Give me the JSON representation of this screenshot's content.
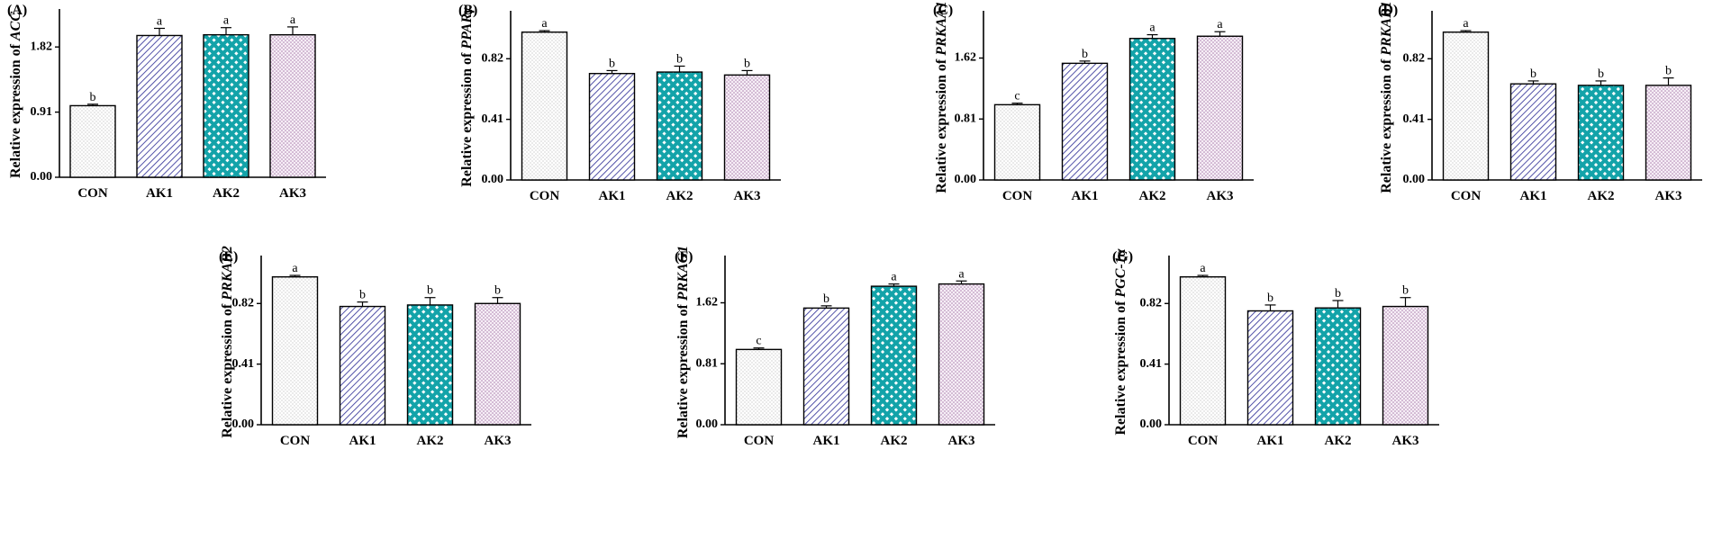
{
  "colors": {
    "axis": "#000000",
    "con_dots": "#9a9a9a",
    "ak1_stripe": "#3f3f9e",
    "ak2_fill": "#13a3a9",
    "ak3_dots": "#a678a8"
  },
  "chart_data": [
    {
      "type": "bar",
      "panel": "(A)",
      "ylabel_prefix": "Relative expression of ",
      "gene": "ACC",
      "categories": [
        "CON",
        "AK1",
        "AK2",
        "AK3"
      ],
      "values": [
        1.0,
        1.98,
        1.99,
        1.99
      ],
      "errors": [
        0.02,
        0.1,
        0.1,
        0.11
      ],
      "letters": [
        "b",
        "a",
        "a",
        "a"
      ],
      "yticks": [
        0.0,
        0.91,
        1.82
      ],
      "ytick_labels": [
        "0.00",
        "0.91",
        "1.82"
      ],
      "ylim": [
        0,
        2.3
      ]
    },
    {
      "type": "bar",
      "panel": "(B)",
      "ylabel_prefix": "Relative expression of ",
      "gene": "PPARγ",
      "categories": [
        "CON",
        "AK1",
        "AK2",
        "AK3"
      ],
      "values": [
        1.0,
        0.72,
        0.73,
        0.71
      ],
      "errors": [
        0.01,
        0.02,
        0.04,
        0.03
      ],
      "letters": [
        "a",
        "b",
        "b",
        "b"
      ],
      "yticks": [
        0.0,
        0.41,
        0.82
      ],
      "ytick_labels": [
        "0.00",
        "0.41",
        "0.82"
      ],
      "ylim": [
        0,
        1.12
      ]
    },
    {
      "type": "bar",
      "panel": "(C)",
      "ylabel_prefix": "Relative expression of ",
      "gene": "PRKAA1",
      "categories": [
        "CON",
        "AK1",
        "AK2",
        "AK3"
      ],
      "values": [
        1.0,
        1.55,
        1.88,
        1.91
      ],
      "errors": [
        0.02,
        0.03,
        0.05,
        0.06
      ],
      "letters": [
        "c",
        "b",
        "a",
        "a"
      ],
      "yticks": [
        0.0,
        0.81,
        1.62
      ],
      "ytick_labels": [
        "0.00",
        "0.81",
        "1.62"
      ],
      "ylim": [
        0,
        2.2
      ]
    },
    {
      "type": "bar",
      "panel": "(D)",
      "ylabel_prefix": "Relative expression of ",
      "gene": "PRKAB1",
      "categories": [
        "CON",
        "AK1",
        "AK2",
        "AK3"
      ],
      "values": [
        1.0,
        0.65,
        0.64,
        0.64
      ],
      "errors": [
        0.01,
        0.02,
        0.03,
        0.05
      ],
      "letters": [
        "a",
        "b",
        "b",
        "b"
      ],
      "yticks": [
        0.0,
        0.41,
        0.82
      ],
      "ytick_labels": [
        "0.00",
        "0.41",
        "0.82"
      ],
      "ylim": [
        0,
        1.12
      ]
    },
    {
      "type": "bar",
      "panel": "(E)",
      "ylabel_prefix": "Relative expression of ",
      "gene": "PRKAB2",
      "categories": [
        "CON",
        "AK1",
        "AK2",
        "AK3"
      ],
      "values": [
        1.0,
        0.8,
        0.81,
        0.82
      ],
      "errors": [
        0.01,
        0.03,
        0.05,
        0.04
      ],
      "letters": [
        "a",
        "b",
        "b",
        "b"
      ],
      "yticks": [
        0.0,
        0.41,
        0.82
      ],
      "ytick_labels": [
        "0.00",
        "0.41",
        "0.82"
      ],
      "ylim": [
        0,
        1.12
      ]
    },
    {
      "type": "bar",
      "panel": "(F)",
      "ylabel_prefix": "Relative expression of ",
      "gene": "PRKAG1",
      "categories": [
        "CON",
        "AK1",
        "AK2",
        "AK3"
      ],
      "values": [
        1.0,
        1.55,
        1.84,
        1.87
      ],
      "errors": [
        0.02,
        0.03,
        0.03,
        0.04
      ],
      "letters": [
        "c",
        "b",
        "a",
        "a"
      ],
      "yticks": [
        0.0,
        0.81,
        1.62
      ],
      "ytick_labels": [
        "0.00",
        "0.81",
        "1.62"
      ],
      "ylim": [
        0,
        2.2
      ]
    },
    {
      "type": "bar",
      "panel": "(G)",
      "ylabel_prefix": "Relative expression of ",
      "gene": "PGC-1α",
      "categories": [
        "CON",
        "AK1",
        "AK2",
        "AK3"
      ],
      "values": [
        1.0,
        0.77,
        0.79,
        0.8
      ],
      "errors": [
        0.01,
        0.04,
        0.05,
        0.06
      ],
      "letters": [
        "a",
        "b",
        "b",
        "b"
      ],
      "yticks": [
        0.0,
        0.41,
        0.82
      ],
      "ytick_labels": [
        "0.00",
        "0.41",
        "0.82"
      ],
      "ylim": [
        0,
        1.12
      ]
    }
  ]
}
